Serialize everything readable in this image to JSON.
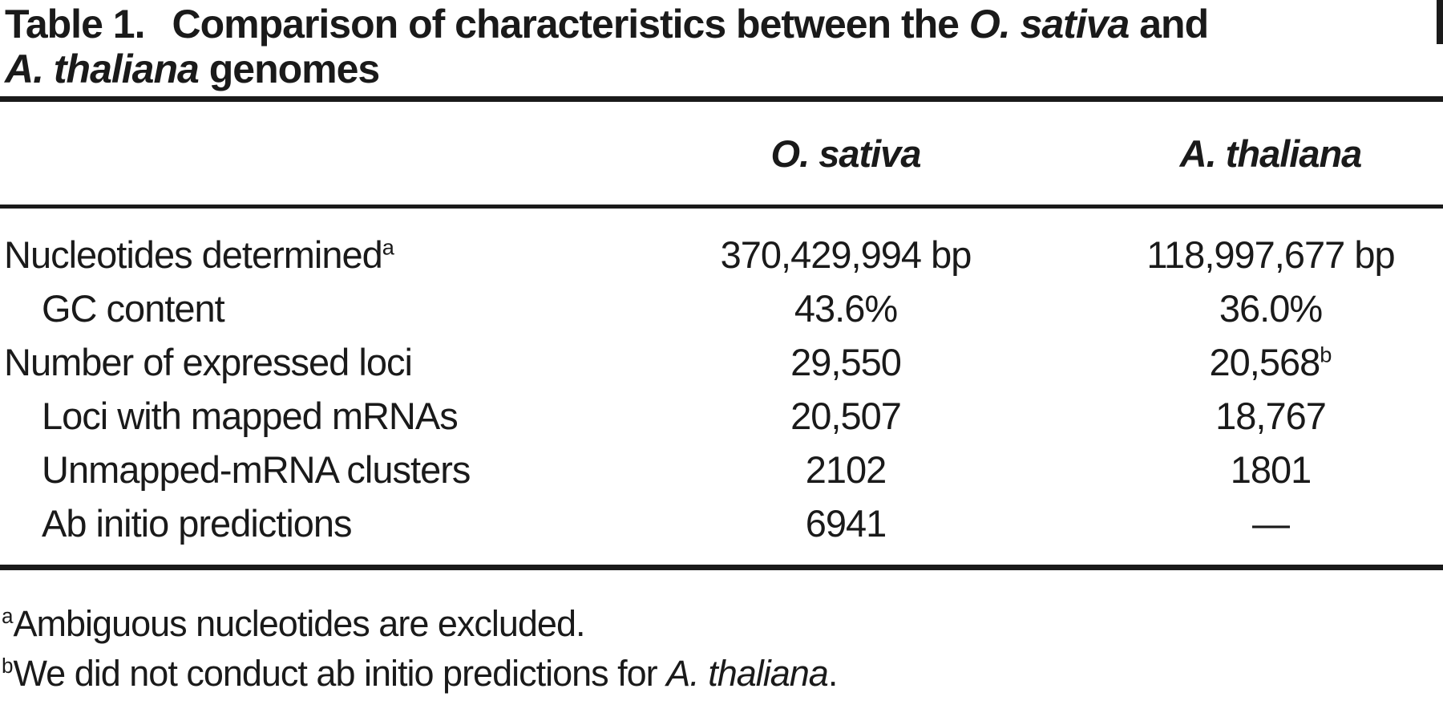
{
  "title": {
    "label": "Table 1.",
    "part1": "Comparison of characteristics between the ",
    "species1": "O. sativa",
    "part2": " and",
    "species2": "A. thaliana",
    "part3": " genomes"
  },
  "table": {
    "column_headers": {
      "col1": "O. sativa",
      "col2": "A. thaliana"
    },
    "rows": [
      {
        "label": "Nucleotides determined",
        "label_sup": "a",
        "o_sativa": "370,429,994 bp",
        "a_thaliana": "118,997,677 bp",
        "indent": false
      },
      {
        "label": "GC content",
        "o_sativa": "43.6%",
        "a_thaliana": "36.0%",
        "indent": true
      },
      {
        "label": "Number of expressed loci",
        "o_sativa": "29,550",
        "a_thaliana": "20,568",
        "a_thaliana_sup": "b",
        "indent": false
      },
      {
        "label": "Loci with mapped mRNAs",
        "o_sativa": "20,507",
        "a_thaliana": "18,767",
        "indent": true
      },
      {
        "label": "Unmapped-mRNA clusters",
        "o_sativa": "2102",
        "a_thaliana": "1801",
        "indent": true
      },
      {
        "label": "Ab initio predictions",
        "o_sativa": "6941",
        "a_thaliana": "—",
        "indent": true
      }
    ]
  },
  "footnotes": [
    {
      "marker": "a",
      "text": "Ambiguous nucleotides are excluded."
    },
    {
      "marker": "b",
      "text": "We did not conduct ab initio predictions for ",
      "italic": "A. thaliana",
      "suffix": "."
    }
  ],
  "colors": {
    "text": "#1a1a1a",
    "background": "#ffffff",
    "rule": "#1a1a1a"
  }
}
